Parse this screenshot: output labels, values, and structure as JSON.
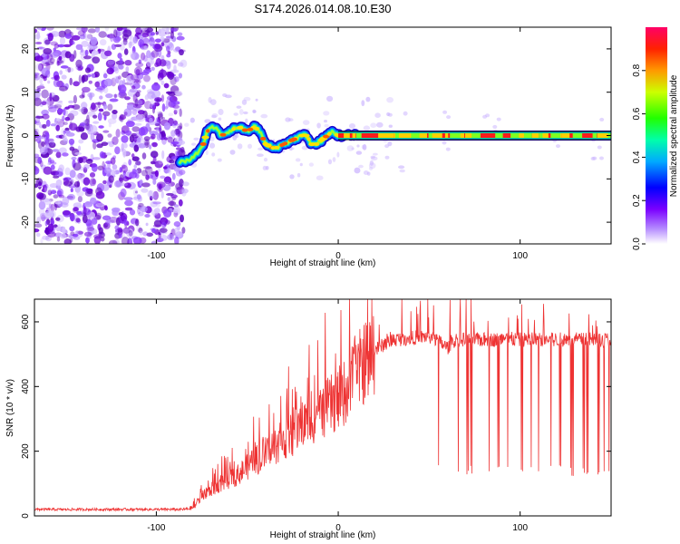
{
  "title": "S174.2026.014.08.10.E30",
  "chart_data": [
    {
      "type": "heatmap",
      "name": "spectrogram",
      "xlabel": "Height of straight line (km)",
      "ylabel": "Frequency (Hz)",
      "xlim": [
        -167,
        150
      ],
      "ylim": [
        -25,
        25
      ],
      "xticks": [
        -100,
        0,
        100
      ],
      "yticks": [
        -20,
        -10,
        0,
        10,
        20
      ],
      "noise_region_end_x": -87,
      "ridge": [
        [
          -87,
          -6
        ],
        [
          -82,
          -6
        ],
        [
          -78,
          -4
        ],
        [
          -75,
          -3
        ],
        [
          -72,
          1
        ],
        [
          -68,
          2
        ],
        [
          -64,
          0
        ],
        [
          -60,
          1
        ],
        [
          -55,
          2
        ],
        [
          -50,
          1
        ],
        [
          -46,
          2
        ],
        [
          -43,
          1
        ],
        [
          -40,
          -2
        ],
        [
          -35,
          -3
        ],
        [
          -30,
          -2
        ],
        [
          -25,
          -1
        ],
        [
          -20,
          0
        ],
        [
          -17,
          0
        ],
        [
          -15,
          -2
        ],
        [
          -12,
          -2
        ],
        [
          -9,
          -1
        ],
        [
          -6,
          0
        ],
        [
          -3,
          1
        ],
        [
          0,
          0
        ],
        [
          5,
          0
        ],
        [
          10,
          0
        ],
        [
          20,
          0
        ],
        [
          50,
          0
        ],
        [
          80,
          0
        ],
        [
          110,
          0
        ],
        [
          140,
          0
        ],
        [
          150,
          0
        ]
      ],
      "colorbar": {
        "label": "Normalized spectral amplitude",
        "ticks": [
          0.0,
          0.2,
          0.4,
          0.6,
          0.8
        ],
        "colors": [
          "#ffffff",
          "#7a00ff",
          "#0000ff",
          "#00ccff",
          "#00ff40",
          "#e6ff00",
          "#ff8c00",
          "#ff0040"
        ]
      }
    },
    {
      "type": "line",
      "name": "snr",
      "xlabel": "Height of straight line (km)",
      "ylabel": "SNR (10 * v/v)",
      "xlim": [
        -167,
        150
      ],
      "ylim": [
        0,
        670
      ],
      "xticks": [
        -100,
        0,
        100
      ],
      "yticks": [
        0,
        200,
        400,
        600
      ],
      "color": "#ee3333",
      "trend": [
        [
          -167,
          20
        ],
        [
          -85,
          20
        ],
        [
          -80,
          25
        ],
        [
          -75,
          60
        ],
        [
          -65,
          100
        ],
        [
          -55,
          130
        ],
        [
          -45,
          170
        ],
        [
          -35,
          215
        ],
        [
          -25,
          255
        ],
        [
          -15,
          300
        ],
        [
          -5,
          340
        ],
        [
          0,
          360
        ],
        [
          5,
          390
        ],
        [
          10,
          440
        ],
        [
          15,
          480
        ],
        [
          20,
          510
        ],
        [
          25,
          530
        ],
        [
          30,
          545
        ],
        [
          40,
          550
        ],
        [
          50,
          555
        ],
        [
          55,
          540
        ],
        [
          60,
          520
        ],
        [
          65,
          545
        ],
        [
          150,
          545
        ]
      ],
      "dropouts": [
        55,
        66,
        71,
        73,
        83,
        88,
        93,
        101,
        106,
        110,
        117,
        122,
        128,
        129,
        135,
        137,
        143,
        146,
        149
      ]
    }
  ]
}
